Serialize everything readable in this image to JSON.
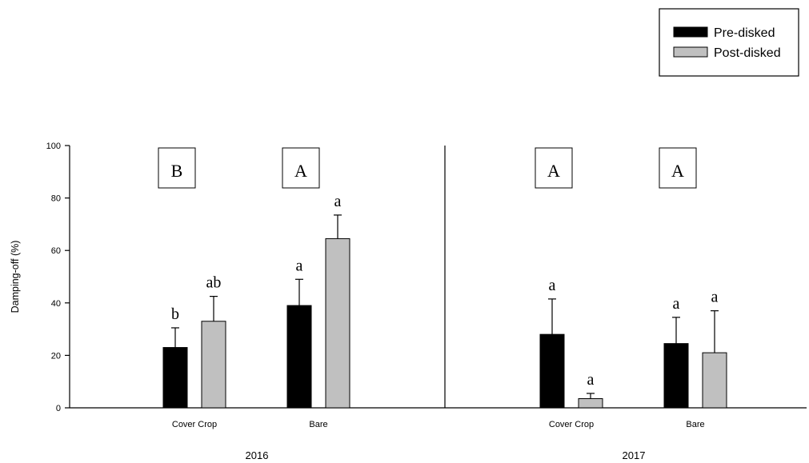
{
  "chart_data": {
    "type": "bar",
    "ylabel": "Damping-off  (%)",
    "ylim": [
      0,
      100
    ],
    "yticks": [
      "0",
      "20",
      "40",
      "60",
      "80",
      "100"
    ],
    "grid": false,
    "legend_position": "top-right",
    "series": [
      {
        "name": "Pre-disked",
        "color": "#000000"
      },
      {
        "name": "Post-disked",
        "color": "#c0c0c0"
      }
    ],
    "panels": [
      {
        "year": "2016",
        "groups": [
          {
            "category": "Cover Crop",
            "group_letter": "B",
            "bars": [
              {
                "series": "Pre-disked",
                "value": 23,
                "error": 7.5,
                "letter": "b"
              },
              {
                "series": "Post-disked",
                "value": 33,
                "error": 9.5,
                "letter": "ab"
              }
            ]
          },
          {
            "category": "Bare",
            "group_letter": "A",
            "bars": [
              {
                "series": "Pre-disked",
                "value": 39,
                "error": 10,
                "letter": "a"
              },
              {
                "series": "Post-disked",
                "value": 64.5,
                "error": 9,
                "letter": "a"
              }
            ]
          }
        ]
      },
      {
        "year": "2017",
        "groups": [
          {
            "category": "Cover Crop",
            "group_letter": "A",
            "bars": [
              {
                "series": "Pre-disked",
                "value": 28,
                "error": 13.5,
                "letter": "a"
              },
              {
                "series": "Post-disked",
                "value": 3.5,
                "error": 2,
                "letter": "a"
              }
            ]
          },
          {
            "category": "Bare",
            "group_letter": "A",
            "bars": [
              {
                "series": "Pre-disked",
                "value": 24.5,
                "error": 10,
                "letter": "a"
              },
              {
                "series": "Post-disked",
                "value": 21,
                "error": 16,
                "letter": "a"
              }
            ]
          }
        ]
      }
    ]
  }
}
